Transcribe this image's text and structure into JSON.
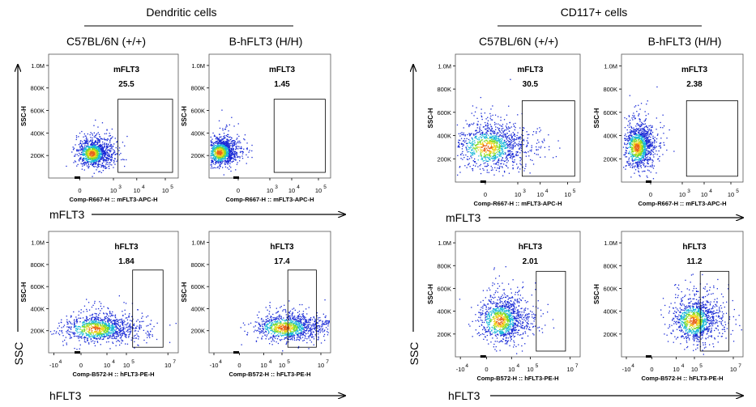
{
  "groups": [
    {
      "title": "Dendritic cells",
      "strains": [
        "C57BL/6N (+/+)",
        "B-hFLT3 (H/H)"
      ],
      "y_arrow_label": "SSC",
      "row_arrow_labels": [
        "mFLT3",
        "hFLT3"
      ]
    },
    {
      "title": "CD117+ cells",
      "strains": [
        "C57BL/6N (+/+)",
        "B-hFLT3 (H/H)"
      ],
      "y_arrow_label": "SSC",
      "row_arrow_labels": [
        "mFLT3",
        "hFLT3"
      ]
    }
  ],
  "colors": {
    "density_low": "#1a2bd6",
    "density_mid": "#19b8d8",
    "density_high_1": "#7ddc2a",
    "density_high_2": "#f3d21a",
    "density_peak": "#e8651a",
    "axis": "#000000"
  },
  "chart_data": [
    {
      "type": "scatter",
      "group": "Dendritic cells",
      "strain": "C57BL/6N (+/+)",
      "marker": "mFLT3",
      "gate_label": "mFLT3",
      "gate_percent": "25.5",
      "xlabel": "Comp-R667-H :: mFLT3-APC-H",
      "ylabel": "SSC-H",
      "x_ticks": [
        "0",
        "10",
        "10",
        "10"
      ],
      "x_tick_exponents": [
        "",
        "3",
        "4",
        "5"
      ],
      "y_ticks": [
        "200K",
        "400K",
        "600K",
        "800K",
        "1.0M"
      ],
      "x_scale": "biexponential",
      "xlim": [
        -100,
        150000
      ],
      "ylim": [
        0,
        1100000
      ],
      "gate": {
        "x": [
          2000,
          100000
        ],
        "y": [
          50000,
          700000
        ]
      },
      "population": {
        "center_x": 300,
        "center_y": 220000,
        "spread_x": "narrow",
        "spread_y": "low"
      }
    },
    {
      "type": "scatter",
      "group": "Dendritic cells",
      "strain": "B-hFLT3 (H/H)",
      "marker": "mFLT3",
      "gate_label": "mFLT3",
      "gate_percent": "1.45",
      "xlabel": "Comp-R667-H :: mFLT3-APC-H",
      "ylabel": "SSC-H",
      "x_ticks": [
        "0",
        "10",
        "10",
        "10"
      ],
      "x_tick_exponents": [
        "",
        "3",
        "4",
        "5"
      ],
      "y_ticks": [
        "200K",
        "400K",
        "600K",
        "800K",
        "1.0M"
      ],
      "x_scale": "biexponential",
      "xlim": [
        -100,
        150000
      ],
      "ylim": [
        0,
        1100000
      ],
      "gate": {
        "x": [
          2000,
          100000
        ],
        "y": [
          50000,
          700000
        ]
      },
      "population": {
        "center_x": 0,
        "center_y": 230000,
        "spread_x": "narrow",
        "spread_y": "low"
      }
    },
    {
      "type": "scatter",
      "group": "Dendritic cells",
      "strain": "C57BL/6N (+/+)",
      "marker": "hFLT3",
      "gate_label": "hFLT3",
      "gate_percent": "1.84",
      "xlabel": "Comp-B572-H :: hFLT3-PE-H",
      "ylabel": "SSC-H",
      "x_ticks": [
        "-10",
        "0",
        "10",
        "10",
        "10"
      ],
      "x_tick_exponents": [
        "4",
        "",
        "4",
        "5",
        "7"
      ],
      "y_ticks": [
        "200K",
        "400K",
        "600K",
        "800K",
        "1.0M"
      ],
      "x_scale": "biexponential",
      "xlim": [
        -30000,
        10000000
      ],
      "ylim": [
        0,
        1100000
      ],
      "gate": {
        "x": [
          10000,
          1000000
        ],
        "y": [
          50000,
          750000
        ]
      },
      "population": {
        "center_x": 0,
        "center_y": 220000,
        "spread_x": "wide",
        "spread_y": "low"
      }
    },
    {
      "type": "scatter",
      "group": "Dendritic cells",
      "strain": "B-hFLT3 (H/H)",
      "marker": "hFLT3",
      "gate_label": "hFLT3",
      "gate_percent": "17.4",
      "xlabel": "Comp-B572-H :: hFLT3-PE-H",
      "ylabel": "SSC-H",
      "x_ticks": [
        "-10",
        "0",
        "10",
        "10",
        "10"
      ],
      "x_tick_exponents": [
        "4",
        "",
        "4",
        "5",
        "7"
      ],
      "y_ticks": [
        "200K",
        "400K",
        "600K",
        "800K",
        "1.0M"
      ],
      "x_scale": "biexponential",
      "xlim": [
        -30000,
        10000000
      ],
      "ylim": [
        0,
        1100000
      ],
      "gate": {
        "x": [
          10000,
          1000000
        ],
        "y": [
          50000,
          750000
        ]
      },
      "population": {
        "center_x": 5000,
        "center_y": 230000,
        "spread_x": "wide",
        "spread_y": "low"
      }
    },
    {
      "type": "scatter",
      "group": "CD117+ cells",
      "strain": "C57BL/6N (+/+)",
      "marker": "mFLT3",
      "gate_label": "mFLT3",
      "gate_percent": "30.5",
      "xlabel": "Comp-R667-H :: mFLT3-APC-H",
      "ylabel": "SSC-H",
      "x_ticks": [
        "0",
        "10",
        "10",
        "10"
      ],
      "x_tick_exponents": [
        "",
        "3",
        "4",
        "5"
      ],
      "y_ticks": [
        "200K",
        "400K",
        "600K",
        "800K",
        "1.0M"
      ],
      "x_scale": "biexponential",
      "xlim": [
        -100,
        150000
      ],
      "ylim": [
        0,
        1100000
      ],
      "gate": {
        "x": [
          2000,
          100000
        ],
        "y": [
          50000,
          700000
        ]
      },
      "population": {
        "center_x": 200,
        "center_y": 300000,
        "spread_x": "wide",
        "spread_y": "medium"
      }
    },
    {
      "type": "scatter",
      "group": "CD117+ cells",
      "strain": "B-hFLT3 (H/H)",
      "marker": "mFLT3",
      "gate_label": "mFLT3",
      "gate_percent": "2.38",
      "xlabel": "Comp-R667-H :: mFLT3-APC-H",
      "ylabel": "SSC-H",
      "x_ticks": [
        "0",
        "10",
        "10",
        "10"
      ],
      "x_tick_exponents": [
        "",
        "3",
        "4",
        "5"
      ],
      "y_ticks": [
        "200K",
        "400K",
        "600K",
        "800K",
        "1.0M"
      ],
      "x_scale": "biexponential",
      "xlim": [
        -100,
        150000
      ],
      "ylim": [
        0,
        1100000
      ],
      "gate": {
        "x": [
          2000,
          100000
        ],
        "y": [
          50000,
          700000
        ]
      },
      "population": {
        "center_x": 50,
        "center_y": 300000,
        "spread_x": "narrow",
        "spread_y": "medium"
      }
    },
    {
      "type": "scatter",
      "group": "CD117+ cells",
      "strain": "C57BL/6N (+/+)",
      "marker": "hFLT3",
      "gate_label": "hFLT3",
      "gate_percent": "2.01",
      "xlabel": "Comp-B572-H :: hFLT3-PE-H",
      "ylabel": "SSC-H",
      "x_ticks": [
        "-10",
        "0",
        "10",
        "10",
        "10"
      ],
      "x_tick_exponents": [
        "4",
        "",
        "4",
        "5",
        "7"
      ],
      "y_ticks": [
        "200K",
        "400K",
        "600K",
        "800K",
        "1.0M"
      ],
      "x_scale": "biexponential",
      "xlim": [
        -30000,
        10000000
      ],
      "ylim": [
        0,
        1100000
      ],
      "gate": {
        "x": [
          10000,
          1000000
        ],
        "y": [
          50000,
          750000
        ]
      },
      "population": {
        "center_x": 0,
        "center_y": 320000,
        "spread_x": "medium",
        "spread_y": "medium"
      }
    },
    {
      "type": "scatter",
      "group": "CD117+ cells",
      "strain": "B-hFLT3 (H/H)",
      "marker": "hFLT3",
      "gate_label": "hFLT3",
      "gate_percent": "11.2",
      "xlabel": "Comp-B572-H :: hFLT3-PE-H",
      "ylabel": "SSC-H",
      "x_ticks": [
        "-10",
        "0",
        "10",
        "10",
        "10"
      ],
      "x_tick_exponents": [
        "4",
        "",
        "4",
        "5",
        "7"
      ],
      "y_ticks": [
        "200K",
        "400K",
        "600K",
        "800K",
        "1.0M"
      ],
      "x_scale": "biexponential",
      "xlim": [
        -30000,
        10000000
      ],
      "ylim": [
        0,
        1100000
      ],
      "gate": {
        "x": [
          10000,
          1000000
        ],
        "y": [
          50000,
          750000
        ]
      },
      "population": {
        "center_x": 3000,
        "center_y": 320000,
        "spread_x": "medium",
        "spread_y": "medium"
      }
    }
  ]
}
